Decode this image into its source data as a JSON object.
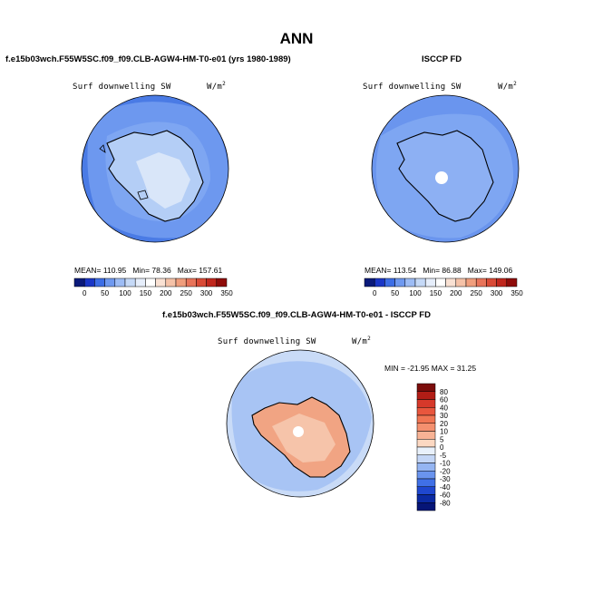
{
  "page": {
    "title": "ANN",
    "left_case": "f.e15b03wch.F55W5SC.f09_f09.CLB-AGW4-HM-T0-e01 (yrs 1980-1989)",
    "right_case": "ISCCP FD",
    "diff_case": "f.e15b03wch.F55W5SC.f09_f09.CLB-AGW4-HM-T0-e01 - ISCCP FD"
  },
  "panels": {
    "left": {
      "variable": "Surf downwelling SW",
      "units": "W/m",
      "units_exp": "2",
      "mean": "MEAN=",
      "mean_val": "110.95",
      "min": "Min=",
      "min_val": "78.36",
      "max": "Max=",
      "max_val": "157.61"
    },
    "right": {
      "variable": "Surf downwelling SW",
      "units": "W/m",
      "units_exp": "2",
      "mean": "MEAN=",
      "mean_val": "113.54",
      "min": "Min=",
      "min_val": "86.88",
      "max": "Max=",
      "max_val": "149.06"
    },
    "diff": {
      "variable": "Surf downwelling SW",
      "units": "W/m",
      "units_exp": "2",
      "minmax": "MIN = -21.95 MAX =  31.25"
    }
  },
  "chart_data": [
    {
      "type": "heatmap",
      "title": "Surf downwelling SW",
      "units": "W/m^2",
      "projection": "polar stereographic (south pole)",
      "stats": {
        "mean": 110.95,
        "min": 78.36,
        "max": 157.61
      },
      "colorbar": {
        "orientation": "horizontal",
        "levels": [
          0,
          50,
          100,
          150,
          200,
          250,
          300,
          350
        ],
        "colors": [
          "#0b1a7a",
          "#1a36c6",
          "#3d6ee6",
          "#6f99f0",
          "#9dbcf5",
          "#c5d9f7",
          "#e6eefb",
          "#ffffff",
          "#f9e1d3",
          "#f5c2a8",
          "#f09e7d",
          "#e8745a",
          "#d94a36",
          "#c0271d",
          "#8f0c0a"
        ]
      }
    },
    {
      "type": "heatmap",
      "title": "Surf downwelling SW",
      "units": "W/m^2",
      "projection": "polar stereographic (south pole)",
      "stats": {
        "mean": 113.54,
        "min": 86.88,
        "max": 149.06
      },
      "colorbar": {
        "orientation": "horizontal",
        "levels": [
          0,
          50,
          100,
          150,
          200,
          250,
          300,
          350
        ],
        "colors": [
          "#0b1a7a",
          "#1a36c6",
          "#3d6ee6",
          "#6f99f0",
          "#9dbcf5",
          "#c5d9f7",
          "#e6eefb",
          "#ffffff",
          "#f9e1d3",
          "#f5c2a8",
          "#f09e7d",
          "#e8745a",
          "#d94a36",
          "#c0271d",
          "#8f0c0a"
        ]
      }
    },
    {
      "type": "heatmap",
      "title": "Surf downwelling SW",
      "units": "W/m^2",
      "projection": "polar stereographic (south pole)",
      "stats": {
        "min": -21.95,
        "max": 31.25
      },
      "colorbar": {
        "orientation": "vertical",
        "levels": [
          "80",
          "60",
          "40",
          "30",
          "20",
          "10",
          "5",
          "0",
          "-5",
          "-10",
          "-20",
          "-30",
          "-40",
          "-60",
          "-80"
        ],
        "colors": [
          "#7b0d0b",
          "#b21d16",
          "#d6392a",
          "#e8563d",
          "#f07553",
          "#f4906f",
          "#f8b395",
          "#fcd8c2",
          "#e9f1fb",
          "#c4d6f6",
          "#95b5f2",
          "#6a94ee",
          "#4070e6",
          "#1f47cf",
          "#0b2aa3",
          "#061577"
        ]
      }
    }
  ]
}
